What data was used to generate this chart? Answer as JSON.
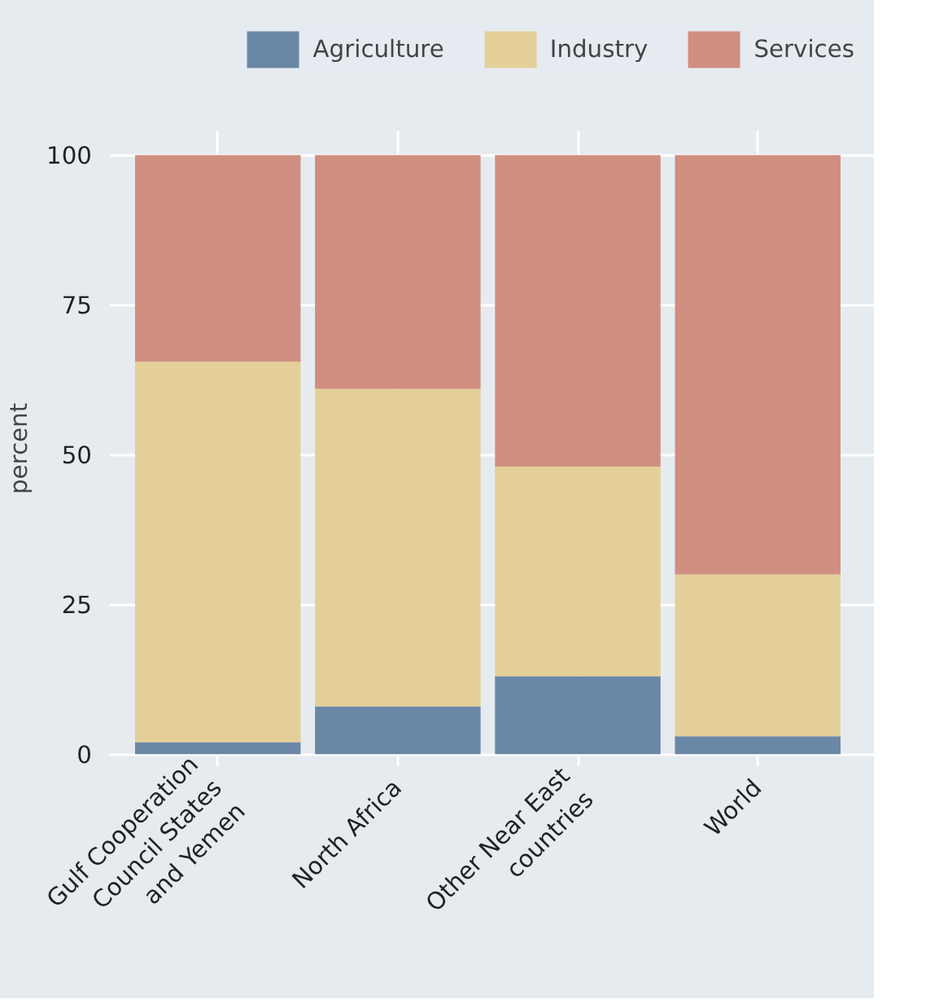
{
  "chart_data": {
    "type": "bar",
    "stacked": true,
    "ylabel": "percent",
    "categories": [
      "Gulf Cooperation Council States and Yemen",
      "North Africa",
      "Other Near East countries",
      "World"
    ],
    "series": [
      {
        "name": "Agriculture",
        "color": "#6b87a6",
        "values": [
          2,
          8,
          13,
          3
        ]
      },
      {
        "name": "Industry",
        "color": "#e4cf98",
        "values": [
          63.5,
          53,
          35,
          27
        ]
      },
      {
        "name": "Services",
        "color": "#d08e80",
        "values": [
          34.5,
          39,
          52,
          70
        ]
      }
    ],
    "ylim": [
      -2,
      104
    ],
    "yticks": [
      0,
      25,
      50,
      75,
      100
    ],
    "grid": true,
    "legend": "top"
  }
}
